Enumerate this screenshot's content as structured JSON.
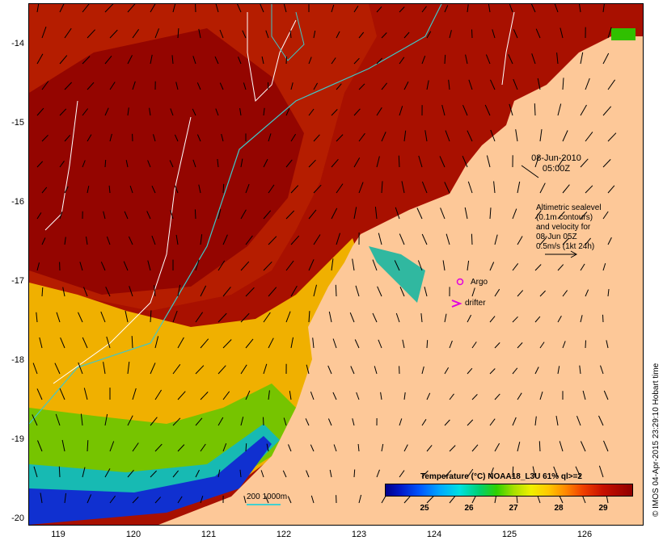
{
  "timestamp": {
    "date": "08-Jun-2010",
    "time": "05:00Z"
  },
  "altimetry_note": [
    "Altimetric sealevel",
    "(0.1m contours)",
    "and velocity for",
    "08-Jun 05Z",
    "0.5m/s (1kt 24h)"
  ],
  "markers": {
    "argo": "Argo",
    "drifter": "drifter"
  },
  "scale_label": "200  1000m",
  "legend": {
    "title": "Temperature (°C) NOAA18_L3U 61% ql>=2",
    "ticks": [
      "25",
      "26",
      "27",
      "28",
      "29"
    ]
  },
  "credit": "© IMOS 04-Apr-2015 23:29:10 Hobart time",
  "y_axis_labels": [
    "-14",
    "-15",
    "-16",
    "-17",
    "-18",
    "-19",
    "-20"
  ],
  "x_axis_labels": [
    "119",
    "120",
    "121",
    "122",
    "123",
    "124",
    "125",
    "126"
  ],
  "colors": {
    "land": "#fdc898",
    "warm": "#a81000",
    "cool": "#f0d000",
    "coastal": "#1030d0",
    "contour": "#40c8c8",
    "argo": "#e000e0"
  }
}
